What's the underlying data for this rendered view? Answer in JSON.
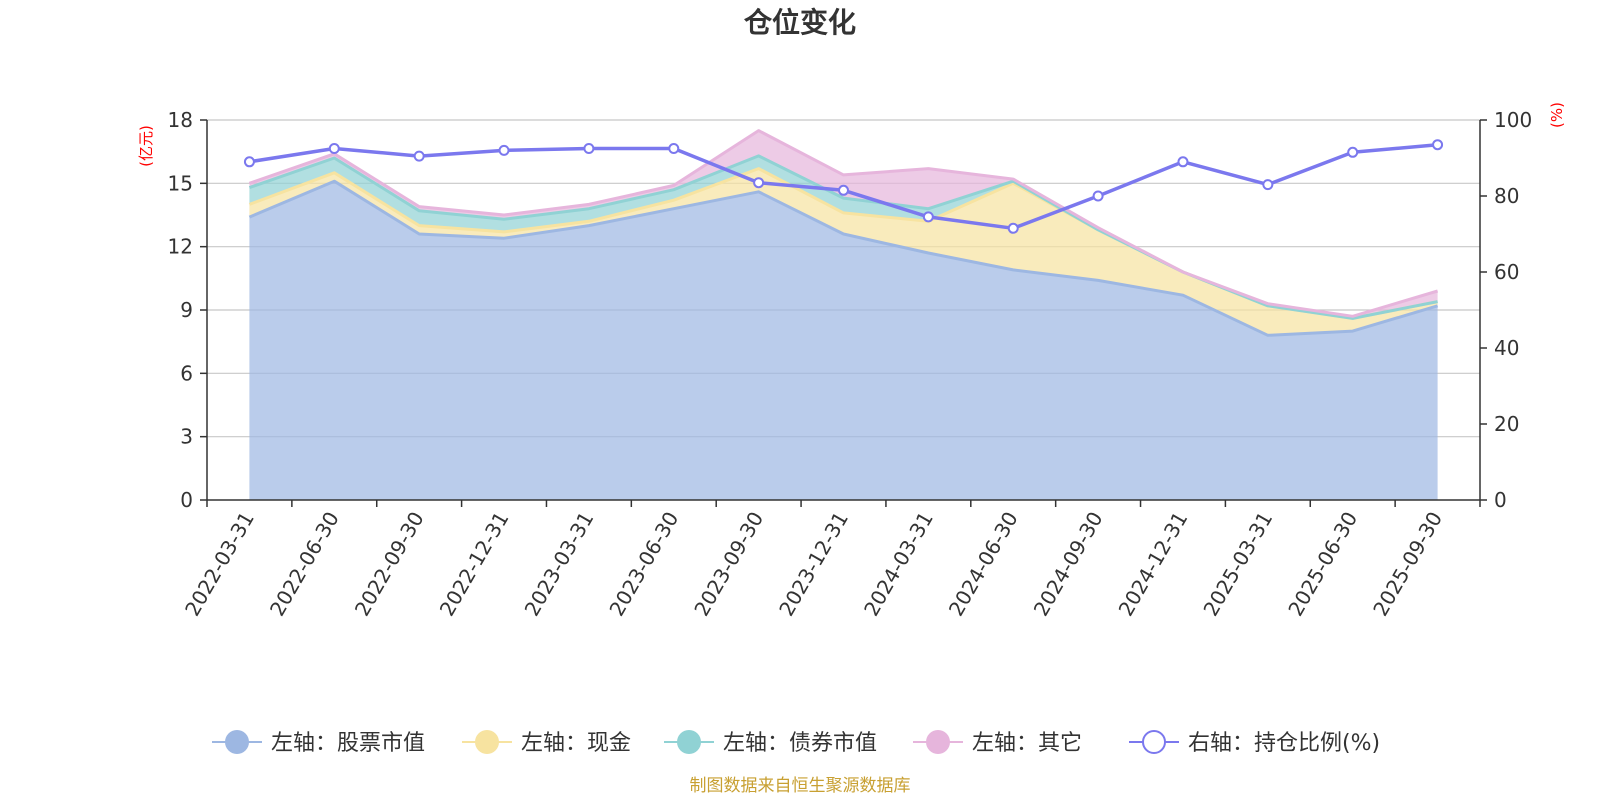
{
  "colors": {
    "stock": "#9db7e2",
    "cash": "#f7e3a0",
    "bond": "#90d2d4",
    "other": "#e6b5dc",
    "ratio": "#7b78ee",
    "unit": "#ff0000",
    "source": "#c8a032"
  },
  "chart_data": {
    "type": "area",
    "title": "仓位变化",
    "left_axis_unit": "(亿元)",
    "right_axis_unit": "(%)",
    "source": "制图数据来自恒生聚源数据库",
    "categories": [
      "2022-03-31",
      "2022-06-30",
      "2022-09-30",
      "2022-12-31",
      "2023-03-31",
      "2023-06-30",
      "2023-09-30",
      "2023-12-31",
      "2024-03-31",
      "2024-06-30",
      "2024-09-30",
      "2024-12-31",
      "2025-03-31",
      "2025-06-30",
      "2025-09-30"
    ],
    "left_ylim": [
      0,
      18
    ],
    "left_ticks": [
      0,
      3,
      6,
      9,
      12,
      15,
      18
    ],
    "right_ylim": [
      0,
      100
    ],
    "right_ticks": [
      0,
      20,
      40,
      60,
      80,
      100
    ],
    "series": [
      {
        "name": "左轴：股票市值",
        "key": "stock",
        "axis": "left",
        "type": "stacked-area",
        "values": [
          13.4,
          15.1,
          12.6,
          12.4,
          13.0,
          13.8,
          14.6,
          12.6,
          11.7,
          10.9,
          10.4,
          9.7,
          7.8,
          8.0,
          9.2
        ]
      },
      {
        "name": "左轴：现金",
        "key": "cash",
        "axis": "left",
        "type": "stacked-area",
        "values": [
          0.6,
          0.4,
          0.4,
          0.3,
          0.2,
          0.4,
          1.1,
          1.0,
          1.5,
          4.1,
          2.4,
          1.1,
          1.4,
          0.6,
          0.2
        ]
      },
      {
        "name": "左轴：债券市值",
        "key": "bond",
        "axis": "left",
        "type": "stacked-area",
        "values": [
          0.8,
          0.7,
          0.7,
          0.6,
          0.6,
          0.5,
          0.6,
          0.7,
          0.6,
          0.1,
          0.0,
          0.0,
          0.0,
          0.0,
          0.0
        ]
      },
      {
        "name": "左轴：其它",
        "key": "other",
        "axis": "left",
        "type": "stacked-area",
        "values": [
          0.2,
          0.2,
          0.2,
          0.2,
          0.2,
          0.2,
          1.2,
          1.1,
          1.9,
          0.1,
          0.1,
          0.0,
          0.1,
          0.1,
          0.5
        ]
      },
      {
        "name": "右轴：持仓比例(%)",
        "key": "ratio",
        "axis": "right",
        "type": "line",
        "values": [
          89,
          92.5,
          90.5,
          92,
          92.5,
          92.5,
          83.5,
          81.5,
          74.5,
          71.5,
          80,
          89,
          83,
          91.5,
          93.5
        ]
      }
    ]
  }
}
